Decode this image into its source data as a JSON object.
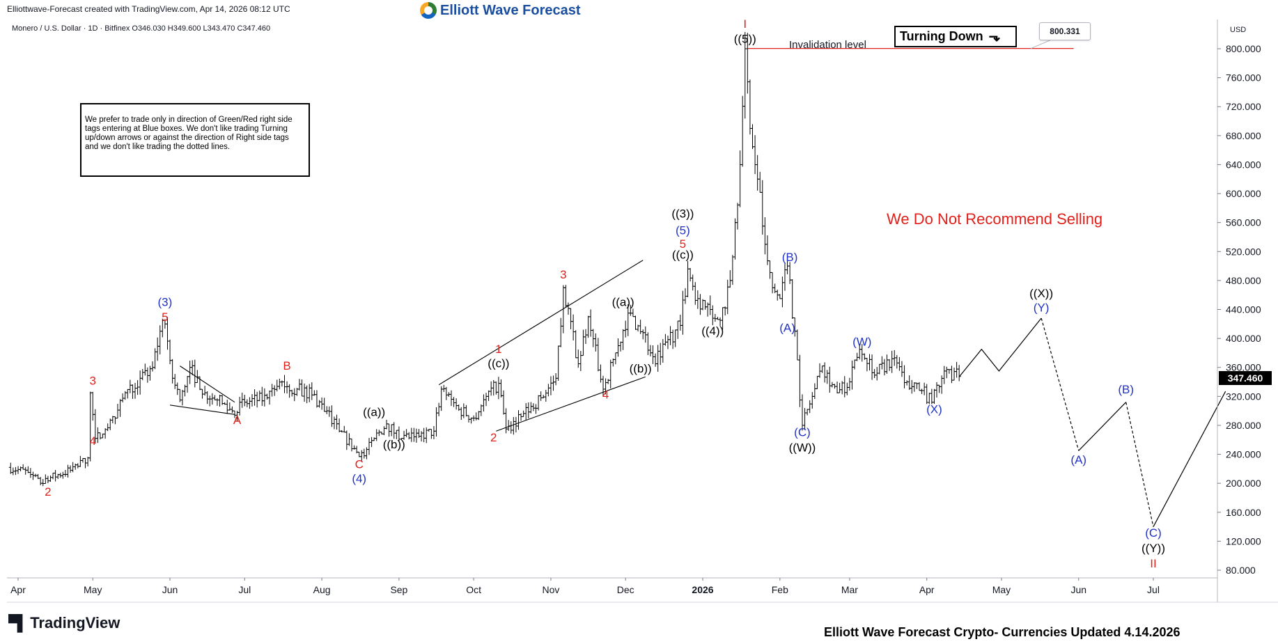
{
  "header": {
    "credit": "Elliottwave-Forecast created with TradingView.com, Apr 14, 2026 08:12 UTC",
    "brand_name": "Elliott Wave Forecast",
    "symbol_line": "Monero / U.S. Dollar · 1D · Bitfinex  O346.030  H349.600  L343.470  C347.460",
    "currency": "USD"
  },
  "note_text": "We prefer to trade only in direction of Green/Red right side tags entering at Blue boxes. We don't like trading Turning up/down arrows or against the direction of Right side tags and we don't like trading the dotted lines.",
  "turning_tag": {
    "label": "Turning Down",
    "arrow_icon": "trend-down-icon",
    "arrow_glyph": "⬎"
  },
  "invalidation_label": "Invalidation level",
  "invalidation_price": "800.331",
  "recommend_text": "We Do Not Recommend Selling",
  "last_price": "347.460",
  "footer": {
    "tradingview_logo": "TradingView",
    "updated": "Elliott Wave Forecast Crypto- Currencies Updated 4.14.2026"
  },
  "colors": {
    "red": "#e0201b",
    "blue": "#1f31c8",
    "black": "#000000",
    "invalidation_line": "#e0201b"
  },
  "chart_data": {
    "type": "line",
    "title": "Monero / U.S. Dollar · 1D · Bitfinex",
    "ylabel": "USD",
    "ylim": [
      70,
      830
    ],
    "y_ticks": [
      800,
      760,
      720,
      680,
      640,
      600,
      560,
      520,
      480,
      440,
      400,
      360,
      320,
      280,
      240,
      200,
      160,
      120,
      80
    ],
    "y_tick_labels": [
      "800.000",
      "760.000",
      "720.000",
      "680.000",
      "640.000",
      "600.000",
      "560.000",
      "520.000",
      "480.000",
      "440.000",
      "400.000",
      "360.000",
      "320.000",
      "280.000",
      "240.000",
      "200.000",
      "160.000",
      "120.000",
      "80.000"
    ],
    "x_ticks": [
      "2025-04-01",
      "2025-05-01",
      "2025-06-01",
      "2025-07-01",
      "2025-08-01",
      "2025-09-01",
      "2025-10-01",
      "2025-11-01",
      "2025-12-01",
      "2026-01-01",
      "2026-02-01",
      "2026-03-01",
      "2026-04-01",
      "2026-05-01",
      "2026-06-01",
      "2026-07-01"
    ],
    "x_tick_labels": [
      "Apr",
      "May",
      "Jun",
      "Jul",
      "Aug",
      "Sep",
      "Oct",
      "Nov",
      "Dec",
      "2026",
      "Feb",
      "Mar",
      "Apr",
      "May",
      "Jun",
      "Jul"
    ],
    "series": [
      {
        "type": "ohlc",
        "points": [
          {
            "x": "2025-03-28",
            "y": 222
          },
          {
            "x": "2025-04-05",
            "y": 215
          },
          {
            "x": "2025-04-10",
            "y": 200
          },
          {
            "x": "2025-04-14",
            "y": 208
          },
          {
            "x": "2025-04-22",
            "y": 218
          },
          {
            "x": "2025-04-29",
            "y": 235
          },
          {
            "x": "2025-04-30",
            "y": 325
          },
          {
            "x": "2025-05-02",
            "y": 262
          },
          {
            "x": "2025-05-05",
            "y": 268
          },
          {
            "x": "2025-05-10",
            "y": 290
          },
          {
            "x": "2025-05-14",
            "y": 325
          },
          {
            "x": "2025-05-20",
            "y": 345
          },
          {
            "x": "2025-05-25",
            "y": 360
          },
          {
            "x": "2025-05-28",
            "y": 410
          },
          {
            "x": "2025-05-30",
            "y": 420
          },
          {
            "x": "2025-06-02",
            "y": 345
          },
          {
            "x": "2025-06-05",
            "y": 315
          },
          {
            "x": "2025-06-09",
            "y": 360
          },
          {
            "x": "2025-06-15",
            "y": 325
          },
          {
            "x": "2025-06-20",
            "y": 315
          },
          {
            "x": "2025-06-26",
            "y": 300
          },
          {
            "x": "2025-07-01",
            "y": 312
          },
          {
            "x": "2025-07-10",
            "y": 318
          },
          {
            "x": "2025-07-16",
            "y": 340
          },
          {
            "x": "2025-07-22",
            "y": 330
          },
          {
            "x": "2025-07-28",
            "y": 322
          },
          {
            "x": "2025-08-03",
            "y": 300
          },
          {
            "x": "2025-08-08",
            "y": 272
          },
          {
            "x": "2025-08-14",
            "y": 248
          },
          {
            "x": "2025-08-18",
            "y": 238
          },
          {
            "x": "2025-08-22",
            "y": 262
          },
          {
            "x": "2025-08-27",
            "y": 282
          },
          {
            "x": "2025-09-02",
            "y": 262
          },
          {
            "x": "2025-09-09",
            "y": 265
          },
          {
            "x": "2025-09-15",
            "y": 272
          },
          {
            "x": "2025-09-18",
            "y": 330
          },
          {
            "x": "2025-09-25",
            "y": 302
          },
          {
            "x": "2025-10-01",
            "y": 290
          },
          {
            "x": "2025-10-06",
            "y": 320
          },
          {
            "x": "2025-10-11",
            "y": 338
          },
          {
            "x": "2025-10-14",
            "y": 275
          },
          {
            "x": "2025-10-20",
            "y": 292
          },
          {
            "x": "2025-10-28",
            "y": 318
          },
          {
            "x": "2025-11-03",
            "y": 345
          },
          {
            "x": "2025-11-06",
            "y": 470
          },
          {
            "x": "2025-11-12",
            "y": 365
          },
          {
            "x": "2025-11-16",
            "y": 430
          },
          {
            "x": "2025-11-22",
            "y": 330
          },
          {
            "x": "2025-11-28",
            "y": 390
          },
          {
            "x": "2025-12-02",
            "y": 435
          },
          {
            "x": "2025-12-08",
            "y": 408
          },
          {
            "x": "2025-12-13",
            "y": 365
          },
          {
            "x": "2025-12-17",
            "y": 395
          },
          {
            "x": "2025-12-23",
            "y": 418
          },
          {
            "x": "2025-12-26",
            "y": 496
          },
          {
            "x": "2025-12-30",
            "y": 455
          },
          {
            "x": "2026-01-04",
            "y": 440
          },
          {
            "x": "2026-01-08",
            "y": 425
          },
          {
            "x": "2026-01-12",
            "y": 480
          },
          {
            "x": "2026-01-14",
            "y": 560
          },
          {
            "x": "2026-01-16",
            "y": 640
          },
          {
            "x": "2026-01-18",
            "y": 800
          },
          {
            "x": "2026-01-20",
            "y": 690
          },
          {
            "x": "2026-01-23",
            "y": 620
          },
          {
            "x": "2026-01-26",
            "y": 530
          },
          {
            "x": "2026-01-29",
            "y": 470
          },
          {
            "x": "2026-02-01",
            "y": 455
          },
          {
            "x": "2026-02-04",
            "y": 500
          },
          {
            "x": "2026-02-07",
            "y": 410
          },
          {
            "x": "2026-02-10",
            "y": 280
          },
          {
            "x": "2026-02-14",
            "y": 320
          },
          {
            "x": "2026-02-18",
            "y": 362
          },
          {
            "x": "2026-02-24",
            "y": 325
          },
          {
            "x": "2026-03-01",
            "y": 340
          },
          {
            "x": "2026-03-05",
            "y": 385
          },
          {
            "x": "2026-03-12",
            "y": 352
          },
          {
            "x": "2026-03-18",
            "y": 372
          },
          {
            "x": "2026-03-24",
            "y": 340
          },
          {
            "x": "2026-03-30",
            "y": 328
          },
          {
            "x": "2026-04-03",
            "y": 312
          },
          {
            "x": "2026-04-08",
            "y": 355
          },
          {
            "x": "2026-04-14",
            "y": 347.46
          }
        ]
      },
      {
        "type": "projection_solid",
        "points": [
          {
            "x": "2026-04-14",
            "y": 347
          },
          {
            "x": "2026-04-23",
            "y": 385
          },
          {
            "x": "2026-04-30",
            "y": 355
          },
          {
            "x": "2026-05-17",
            "y": 428
          }
        ]
      },
      {
        "type": "projection_dashed",
        "points": [
          {
            "x": "2026-05-17",
            "y": 428
          },
          {
            "x": "2026-06-01",
            "y": 245
          }
        ]
      },
      {
        "type": "projection_solid",
        "points": [
          {
            "x": "2026-06-01",
            "y": 245
          },
          {
            "x": "2026-06-20",
            "y": 312
          }
        ]
      },
      {
        "type": "projection_dashed",
        "points": [
          {
            "x": "2026-06-20",
            "y": 312
          },
          {
            "x": "2026-07-01",
            "y": 140
          }
        ]
      },
      {
        "type": "projection_solid",
        "points": [
          {
            "x": "2026-07-01",
            "y": 140
          },
          {
            "x": "2026-07-30",
            "y": 327
          }
        ]
      }
    ],
    "trendlines": [
      {
        "from": {
          "x": "2025-06-05",
          "y": 362
        },
        "to": {
          "x": "2025-06-27",
          "y": 312
        }
      },
      {
        "from": {
          "x": "2025-06-01",
          "y": 308
        },
        "to": {
          "x": "2025-06-27",
          "y": 295
        }
      },
      {
        "from": {
          "x": "2025-09-17",
          "y": 336
        },
        "to": {
          "x": "2025-12-08",
          "y": 508
        }
      },
      {
        "from": {
          "x": "2025-10-10",
          "y": 272
        },
        "to": {
          "x": "2025-12-09",
          "y": 347
        }
      }
    ],
    "invalidation": {
      "price": 800.331,
      "x_from": "2026-01-19",
      "x_to": "2026-05-30"
    },
    "wave_labels": [
      {
        "text": "2",
        "x": "2025-04-13",
        "y": 183,
        "color": "red"
      },
      {
        "text": "3",
        "x": "2025-05-01",
        "y": 336,
        "color": "red"
      },
      {
        "text": "4",
        "x": "2025-05-01",
        "y": 253,
        "color": "red"
      },
      {
        "text": "(3)",
        "x": "2025-05-30",
        "y": 445,
        "color": "blue"
      },
      {
        "text": "5",
        "x": "2025-05-30",
        "y": 424,
        "color": "red"
      },
      {
        "text": "A",
        "x": "2025-06-28",
        "y": 282,
        "color": "red"
      },
      {
        "text": "B",
        "x": "2025-07-18",
        "y": 357,
        "color": "red"
      },
      {
        "text": "C",
        "x": "2025-08-16",
        "y": 221,
        "color": "red"
      },
      {
        "text": "(4)",
        "x": "2025-08-16",
        "y": 201,
        "color": "blue"
      },
      {
        "text": "((a))",
        "x": "2025-08-22",
        "y": 293,
        "color": "black"
      },
      {
        "text": "((b))",
        "x": "2025-08-30",
        "y": 248,
        "color": "black"
      },
      {
        "text": "((c))",
        "x": "2025-10-11",
        "y": 360,
        "color": "black"
      },
      {
        "text": "1",
        "x": "2025-10-11",
        "y": 380,
        "color": "red"
      },
      {
        "text": "2",
        "x": "2025-10-09",
        "y": 258,
        "color": "red"
      },
      {
        "text": "3",
        "x": "2025-11-06",
        "y": 483,
        "color": "red"
      },
      {
        "text": "4",
        "x": "2025-11-23",
        "y": 317,
        "color": "red"
      },
      {
        "text": "((a))",
        "x": "2025-11-30",
        "y": 445,
        "color": "black"
      },
      {
        "text": "((b))",
        "x": "2025-12-07",
        "y": 353,
        "color": "black"
      },
      {
        "text": "((c))",
        "x": "2025-12-24",
        "y": 510,
        "color": "black"
      },
      {
        "text": "5",
        "x": "2025-12-24",
        "y": 525,
        "color": "red"
      },
      {
        "text": "(5)",
        "x": "2025-12-24",
        "y": 544,
        "color": "blue"
      },
      {
        "text": "((3))",
        "x": "2025-12-24",
        "y": 567,
        "color": "black"
      },
      {
        "text": "((4))",
        "x": "2026-01-05",
        "y": 405,
        "color": "black"
      },
      {
        "text": "((5))",
        "x": "2026-01-18",
        "y": 808,
        "color": "black"
      },
      {
        "text": "I",
        "x": "2026-01-18",
        "y": 829,
        "color": "red"
      },
      {
        "text": "(B)",
        "x": "2026-02-05",
        "y": 507,
        "color": "blue"
      },
      {
        "text": "(A)",
        "x": "2026-02-04",
        "y": 409,
        "color": "blue"
      },
      {
        "text": "(C)",
        "x": "2026-02-10",
        "y": 265,
        "color": "blue"
      },
      {
        "text": "((W))",
        "x": "2026-02-10",
        "y": 244,
        "color": "black"
      },
      {
        "text": "(W)",
        "x": "2026-03-06",
        "y": 390,
        "color": "blue"
      },
      {
        "text": "(X)",
        "x": "2026-04-04",
        "y": 297,
        "color": "blue"
      },
      {
        "text": "((X))",
        "x": "2026-05-17",
        "y": 457,
        "color": "black"
      },
      {
        "text": "(Y)",
        "x": "2026-05-17",
        "y": 437,
        "color": "blue"
      },
      {
        "text": "(A)",
        "x": "2026-06-01",
        "y": 227,
        "color": "blue"
      },
      {
        "text": "(B)",
        "x": "2026-06-20",
        "y": 324,
        "color": "blue"
      },
      {
        "text": "(C)",
        "x": "2026-07-01",
        "y": 126,
        "color": "blue"
      },
      {
        "text": "((Y))",
        "x": "2026-07-01",
        "y": 105,
        "color": "black"
      },
      {
        "text": "II",
        "x": "2026-07-01",
        "y": 84,
        "color": "red"
      }
    ]
  }
}
